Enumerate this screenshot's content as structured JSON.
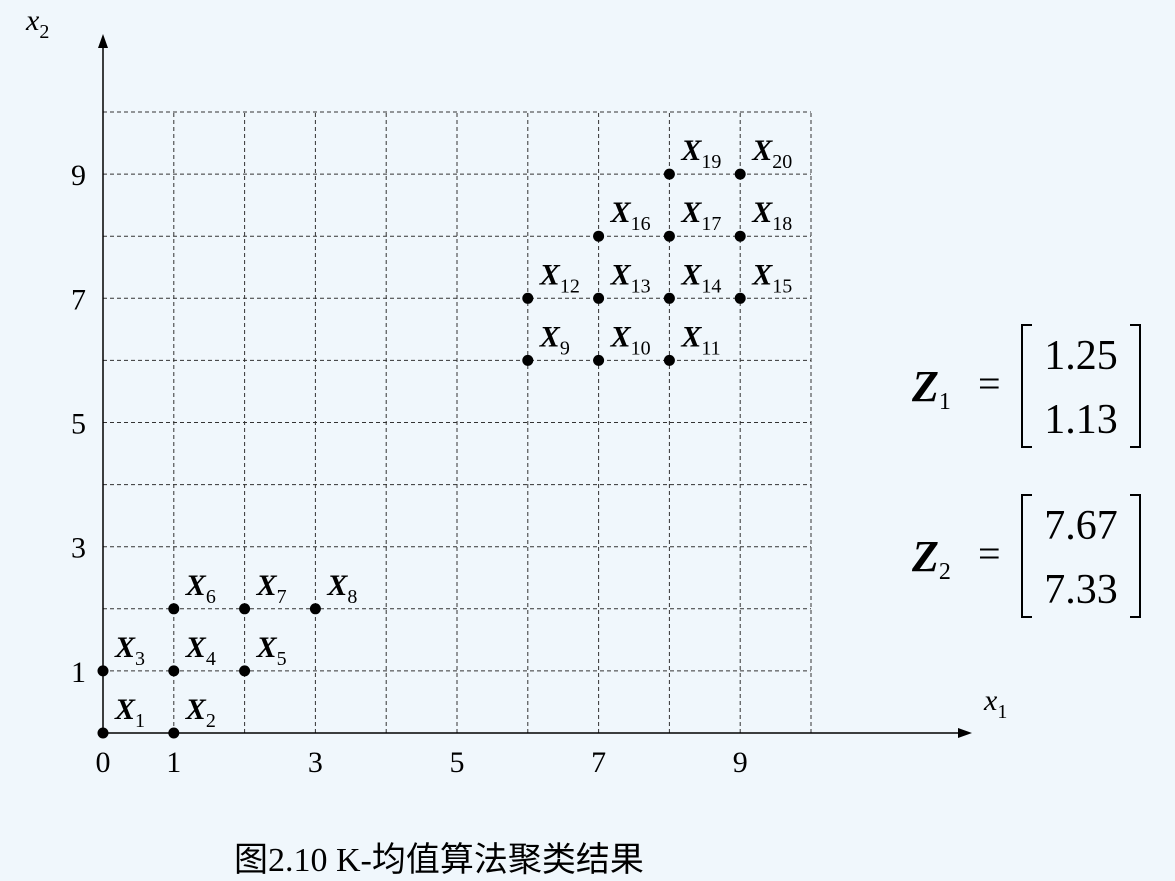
{
  "chart_data": {
    "type": "scatter",
    "x_axis": {
      "var": "x",
      "sub": "1",
      "ticks": [
        "0",
        "1",
        "3",
        "5",
        "7",
        "9"
      ],
      "range": [
        0,
        10
      ]
    },
    "y_axis": {
      "var": "x",
      "sub": "2",
      "ticks": [
        "1",
        "3",
        "5",
        "7",
        "9"
      ],
      "range": [
        0,
        10
      ]
    },
    "grid": true,
    "points": [
      {
        "var": "X",
        "sub": "1",
        "x": 0,
        "y": 0
      },
      {
        "var": "X",
        "sub": "2",
        "x": 1,
        "y": 0
      },
      {
        "var": "X",
        "sub": "3",
        "x": 0,
        "y": 1
      },
      {
        "var": "X",
        "sub": "4",
        "x": 1,
        "y": 1
      },
      {
        "var": "X",
        "sub": "5",
        "x": 2,
        "y": 1
      },
      {
        "var": "X",
        "sub": "6",
        "x": 1,
        "y": 2
      },
      {
        "var": "X",
        "sub": "7",
        "x": 2,
        "y": 2
      },
      {
        "var": "X",
        "sub": "8",
        "x": 3,
        "y": 2
      },
      {
        "var": "X",
        "sub": "9",
        "x": 6,
        "y": 6
      },
      {
        "var": "X",
        "sub": "10",
        "x": 7,
        "y": 6
      },
      {
        "var": "X",
        "sub": "11",
        "x": 8,
        "y": 6
      },
      {
        "var": "X",
        "sub": "12",
        "x": 6,
        "y": 7
      },
      {
        "var": "X",
        "sub": "13",
        "x": 7,
        "y": 7
      },
      {
        "var": "X",
        "sub": "14",
        "x": 8,
        "y": 7
      },
      {
        "var": "X",
        "sub": "15",
        "x": 9,
        "y": 7
      },
      {
        "var": "X",
        "sub": "16",
        "x": 7,
        "y": 8
      },
      {
        "var": "X",
        "sub": "17",
        "x": 8,
        "y": 8
      },
      {
        "var": "X",
        "sub": "18",
        "x": 9,
        "y": 8
      },
      {
        "var": "X",
        "sub": "19",
        "x": 8,
        "y": 9
      },
      {
        "var": "X",
        "sub": "20",
        "x": 9,
        "y": 9
      }
    ],
    "centroids": [
      {
        "var": "Z",
        "sub": "1",
        "eq": "=",
        "values": [
          "1.25",
          "1.13"
        ]
      },
      {
        "var": "Z",
        "sub": "2",
        "eq": "=",
        "values": [
          "7.67",
          "7.33"
        ]
      }
    ]
  },
  "caption": "图2.10  K-均值算法聚类结果"
}
